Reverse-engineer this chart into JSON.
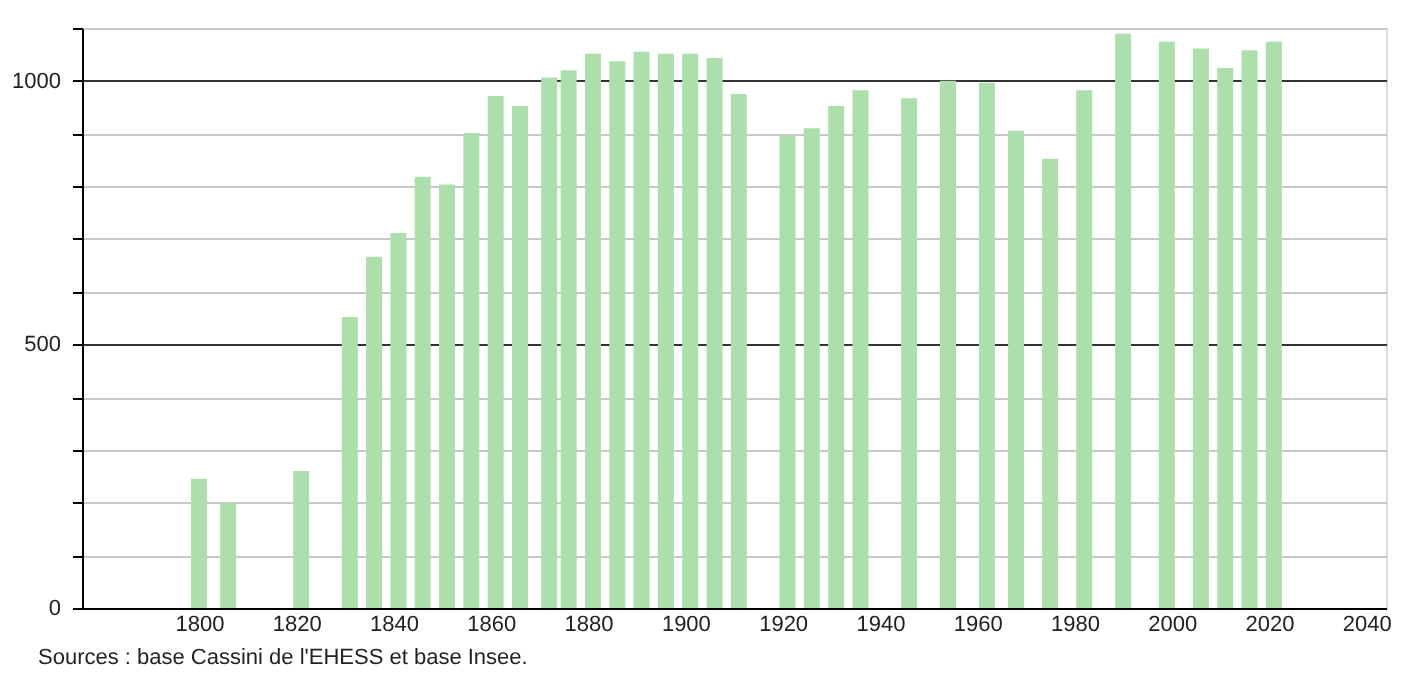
{
  "chart_data": {
    "type": "bar",
    "color": "#addfad",
    "x": [
      1800,
      1806,
      1821,
      1831,
      1836,
      1841,
      1846,
      1851,
      1856,
      1861,
      1866,
      1872,
      1876,
      1881,
      1886,
      1891,
      1896,
      1901,
      1906,
      1911,
      1921,
      1926,
      1931,
      1936,
      1946,
      1954,
      1962,
      1968,
      1975,
      1982,
      1990,
      1999,
      2006,
      2011,
      2016,
      2021
    ],
    "values": [
      245,
      200,
      260,
      552,
      666,
      711,
      818,
      803,
      901,
      971,
      952,
      1006,
      1020,
      1051,
      1037,
      1055,
      1051,
      1051,
      1043,
      975,
      895,
      910,
      952,
      982,
      967,
      1000,
      996,
      905,
      852,
      982,
      1089,
      1074,
      1061,
      1024,
      1058,
      1074
    ],
    "xlim": [
      1778,
      2042
    ],
    "xticks": [
      1800,
      1820,
      1840,
      1860,
      1880,
      1900,
      1920,
      1940,
      1960,
      1980,
      2000,
      2020,
      2040
    ],
    "ylim": [
      0,
      1100
    ],
    "yticks": [
      0,
      {
        "value": 100,
        "label": null
      },
      {
        "value": 200,
        "label": null
      },
      {
        "value": 300,
        "label": null
      },
      {
        "value": 400,
        "label": null
      },
      500,
      {
        "value": 600,
        "label": null
      },
      {
        "value": 700,
        "label": null
      },
      {
        "value": 800,
        "label": null
      },
      {
        "value": 900,
        "label": null
      },
      1000,
      {
        "value": 1100,
        "label": null
      }
    ],
    "grid": "y",
    "annotations": [
      "Sources : base Cassini de l'EHESS et base Insee."
    ]
  }
}
